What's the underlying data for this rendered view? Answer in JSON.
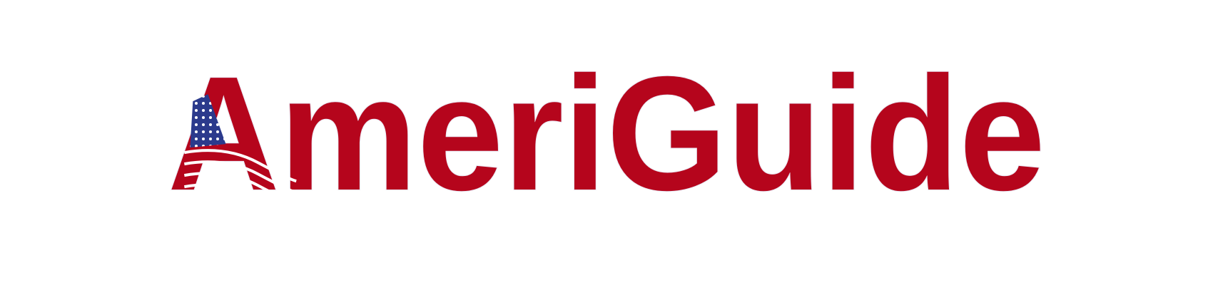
{
  "logo": {
    "text": "AmeriGuide"
  }
}
